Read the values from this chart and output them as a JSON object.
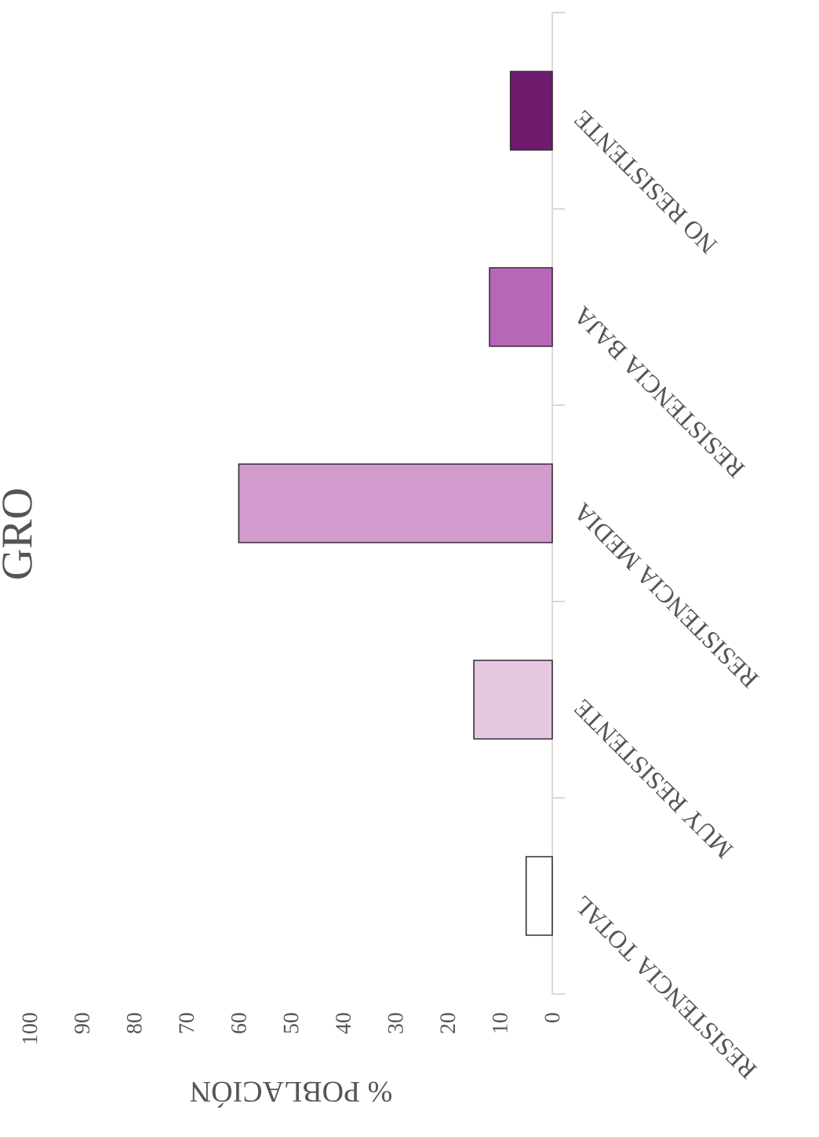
{
  "chart_data": {
    "type": "bar",
    "orientation": "horizontal",
    "title": "GRO",
    "xlabel": "% POBLACIÓN",
    "categories": [
      "NO RESISTENTE",
      "RESISTENCIA BAJA",
      "RESISTENCIA MEDIA",
      "MUY RESISTENTE",
      "RESISTENCIA TOTAL"
    ],
    "values": [
      8,
      12,
      60,
      15,
      5
    ],
    "colors": [
      "#6e1b6e",
      "#b866b8",
      "#d29bcd",
      "#e6c8e3",
      "#ffffff"
    ],
    "xlim": [
      100,
      0
    ],
    "xticks": [
      100,
      90,
      80,
      70,
      60,
      50,
      40,
      30,
      20,
      10,
      0
    ]
  }
}
